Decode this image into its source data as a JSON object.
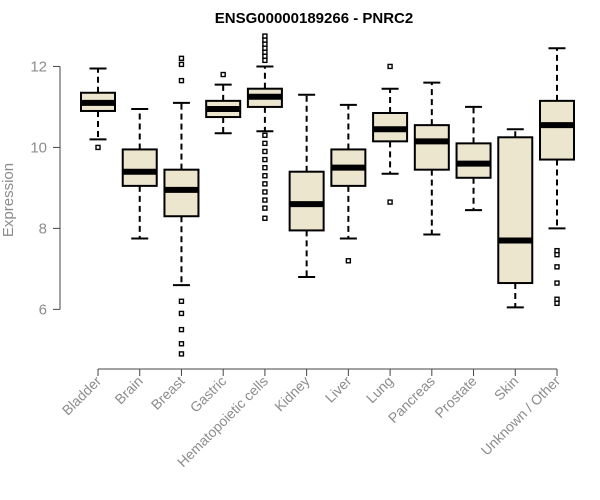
{
  "chart_data": {
    "type": "box",
    "title": "ENSG00000189266 - PNRC2",
    "xlabel": "",
    "ylabel": "Expression",
    "ylim": [
      4.7,
      12.9
    ],
    "yticks": [
      6,
      8,
      10,
      12
    ],
    "box_fill": "#ede6cf",
    "box_stroke": "#000000",
    "categories": [
      "Bladder",
      "Brain",
      "Breast",
      "Gastric",
      "Hematopoietic cells",
      "Kidney",
      "Liver",
      "Lung",
      "Pancreas",
      "Prostate",
      "Skin",
      "Unknown / Other"
    ],
    "boxes": [
      {
        "category": "Bladder",
        "whisker_low": 10.2,
        "q1": 10.9,
        "median": 11.1,
        "q3": 11.35,
        "whisker_high": 11.95,
        "outliers": [
          10.0
        ]
      },
      {
        "category": "Brain",
        "whisker_low": 7.75,
        "q1": 9.05,
        "median": 9.4,
        "q3": 9.95,
        "whisker_high": 10.95,
        "outliers": []
      },
      {
        "category": "Breast",
        "whisker_low": 6.6,
        "q1": 8.3,
        "median": 8.95,
        "q3": 9.45,
        "whisker_high": 11.1,
        "outliers": [
          12.2,
          12.05,
          11.65,
          6.2,
          5.9,
          5.5,
          5.15,
          4.9
        ]
      },
      {
        "category": "Gastric",
        "whisker_low": 10.35,
        "q1": 10.75,
        "median": 10.95,
        "q3": 11.15,
        "whisker_high": 11.55,
        "outliers": [
          11.8
        ]
      },
      {
        "category": "Hematopoietic cells",
        "whisker_low": 10.4,
        "q1": 11.0,
        "median": 11.25,
        "q3": 11.45,
        "whisker_high": 12.0,
        "outliers": [
          12.75,
          12.65,
          12.55,
          12.45,
          12.35,
          12.25,
          12.15,
          10.3,
          10.1,
          9.9,
          9.7,
          9.5,
          9.3,
          9.1,
          8.9,
          8.7,
          8.5,
          8.25
        ]
      },
      {
        "category": "Kidney",
        "whisker_low": 6.8,
        "q1": 7.95,
        "median": 8.6,
        "q3": 9.4,
        "whisker_high": 11.3,
        "outliers": []
      },
      {
        "category": "Liver",
        "whisker_low": 7.75,
        "q1": 9.05,
        "median": 9.5,
        "q3": 9.95,
        "whisker_high": 11.05,
        "outliers": [
          7.2
        ]
      },
      {
        "category": "Lung",
        "whisker_low": 9.35,
        "q1": 10.15,
        "median": 10.45,
        "q3": 10.85,
        "whisker_high": 11.45,
        "outliers": [
          12.0,
          8.65
        ]
      },
      {
        "category": "Pancreas",
        "whisker_low": 7.85,
        "q1": 9.45,
        "median": 10.15,
        "q3": 10.55,
        "whisker_high": 11.6,
        "outliers": []
      },
      {
        "category": "Prostate",
        "whisker_low": 8.45,
        "q1": 9.25,
        "median": 9.6,
        "q3": 10.1,
        "whisker_high": 11.0,
        "outliers": []
      },
      {
        "category": "Skin",
        "whisker_low": 6.05,
        "q1": 6.65,
        "median": 7.7,
        "q3": 10.25,
        "whisker_high": 10.45,
        "outliers": []
      },
      {
        "category": "Unknown / Other",
        "whisker_low": 8.0,
        "q1": 9.7,
        "median": 10.55,
        "q3": 11.15,
        "whisker_high": 12.45,
        "outliers": [
          7.45,
          7.35,
          7.05,
          6.65,
          6.25,
          6.15
        ]
      }
    ]
  }
}
